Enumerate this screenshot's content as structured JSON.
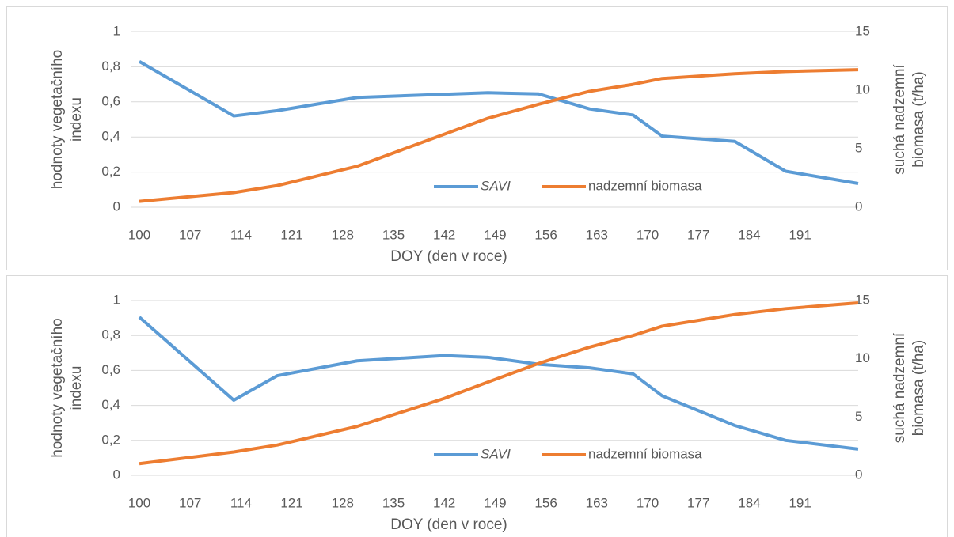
{
  "chart_data": [
    {
      "type": "line",
      "x": [
        100,
        113,
        119,
        130,
        148,
        155,
        162,
        168,
        172,
        182,
        189,
        199
      ],
      "series": [
        {
          "name": "SAVI",
          "color": "#5b9bd5",
          "values": [
            0.83,
            0.52,
            0.55,
            0.625,
            0.652,
            0.645,
            0.56,
            0.525,
            0.405,
            0.375,
            0.205,
            0.135
          ]
        },
        {
          "name": "nadzemní biomasa",
          "color": "#ed7d31",
          "axis": "y2",
          "values": [
            0.5,
            1.25,
            1.85,
            3.5,
            7.6,
            8.8,
            9.9,
            10.5,
            11.0,
            11.4,
            11.6,
            11.75
          ]
        }
      ],
      "xlim": [
        100,
        199
      ],
      "xticks": [
        100,
        107,
        114,
        121,
        128,
        135,
        142,
        149,
        156,
        163,
        170,
        177,
        184,
        191
      ],
      "ylim": [
        0,
        1
      ],
      "yticks": [
        0,
        {
          "value": 0.2,
          "label": "0,2"
        },
        {
          "value": 0.4,
          "label": "0,4"
        },
        {
          "value": 0.6,
          "label": "0,6"
        },
        {
          "value": 0.8,
          "label": "0,8"
        },
        1
      ],
      "y2lim": [
        0,
        15
      ],
      "y2ticks": [
        0,
        5,
        10,
        15
      ],
      "xlabel": "DOY (den v roce)",
      "ylabel": [
        "hodnoty vegetačního",
        "indexu"
      ],
      "y2label": [
        "suchá nadzemní",
        "biomasa (t/ha)"
      ],
      "grid": true,
      "legend": "bottom"
    },
    {
      "type": "line",
      "x": [
        100,
        113,
        119,
        130,
        142,
        148,
        155,
        162,
        168,
        172,
        182,
        189,
        199
      ],
      "series": [
        {
          "name": "SAVI",
          "color": "#5b9bd5",
          "values": [
            0.905,
            0.43,
            0.57,
            0.655,
            0.685,
            0.675,
            0.635,
            0.615,
            0.58,
            0.455,
            0.285,
            0.2,
            0.15
          ]
        },
        {
          "name": "nadzemní biomasa",
          "color": "#ed7d31",
          "axis": "y2",
          "values": [
            1.0,
            2.0,
            2.6,
            4.2,
            6.6,
            8.0,
            9.6,
            11.0,
            12.0,
            12.8,
            13.8,
            14.3,
            14.8
          ]
        }
      ],
      "xlim": [
        100,
        199
      ],
      "xticks": [
        100,
        107,
        114,
        121,
        128,
        135,
        142,
        149,
        156,
        163,
        170,
        177,
        184,
        191
      ],
      "ylim": [
        0,
        1
      ],
      "yticks": [
        0,
        {
          "value": 0.2,
          "label": "0,2"
        },
        {
          "value": 0.4,
          "label": "0,4"
        },
        {
          "value": 0.6,
          "label": "0,6"
        },
        {
          "value": 0.8,
          "label": "0,8"
        },
        1
      ],
      "y2lim": [
        0,
        15
      ],
      "y2ticks": [
        0,
        5,
        10,
        15
      ],
      "xlabel": "DOY (den v roce)",
      "ylabel": [
        "hodnoty vegetačního",
        "indexu"
      ],
      "y2label": [
        "suchá nadzemní",
        "biomasa (t/ha)"
      ],
      "grid": true,
      "legend": "bottom"
    }
  ]
}
